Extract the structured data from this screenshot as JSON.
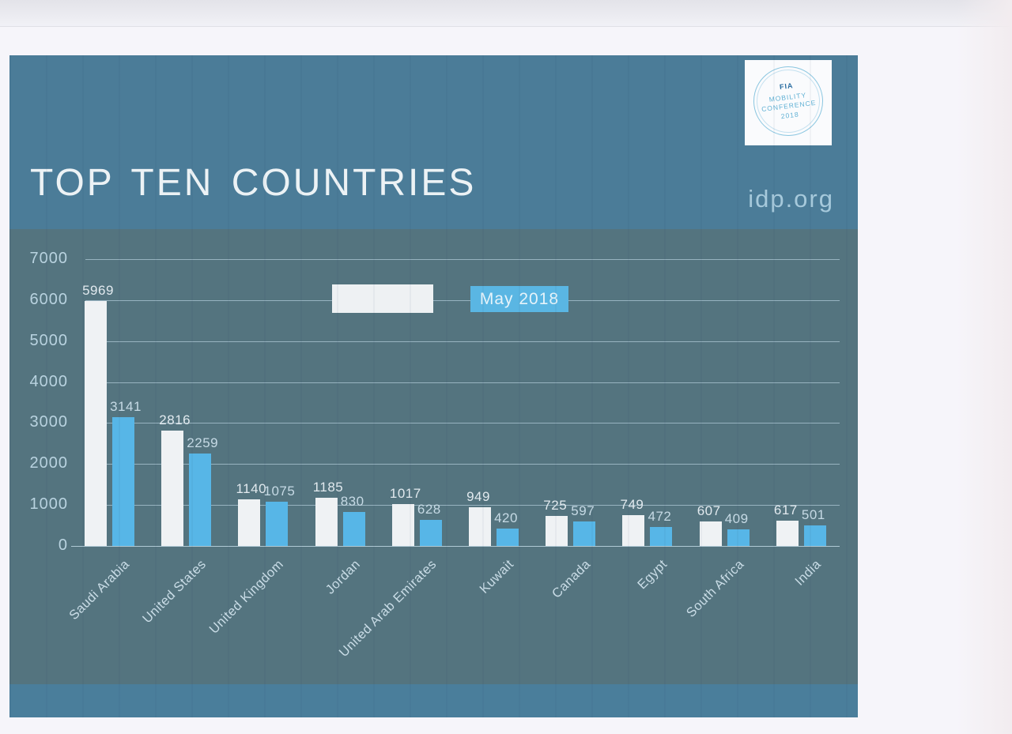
{
  "page": {
    "background": "#f6f5fa"
  },
  "slide": {
    "title": "TOP TEN COUNTRIES",
    "site": "idp.org",
    "colors": {
      "top_band": "#4b7c98",
      "chart_band": "#54747f",
      "bottom_strip": "#4a7e9b",
      "title_text": "#ecf2f5",
      "site_text": "#a6c9db"
    }
  },
  "logo": {
    "org": "FIA",
    "lines": [
      "MOBILITY",
      "CONFERENCE",
      "2018"
    ]
  },
  "legend": [
    {
      "label": "",
      "color": "#eef1f3"
    },
    {
      "label": "May 2018",
      "color": "#5ab6e3"
    }
  ],
  "chart_data": {
    "type": "bar",
    "title": "TOP TEN COUNTRIES",
    "categories": [
      "Saudi Arabia",
      "United States",
      "United Kingdom",
      "Jordan",
      "United Arab Emirates",
      "Kuwait",
      "Canada",
      "Egypt",
      "South Africa",
      "India"
    ],
    "series": [
      {
        "name": "",
        "color": "#eff2f4",
        "label_color": "#e2eaef",
        "values": [
          5969,
          2816,
          1140,
          1185,
          1017,
          949,
          725,
          749,
          607,
          617
        ]
      },
      {
        "name": "May 2018",
        "color": "#57b6e7",
        "label_color": "#c6dae5",
        "values": [
          3141,
          2259,
          1075,
          830,
          628,
          420,
          597,
          472,
          409,
          501
        ]
      }
    ],
    "xlabel": "",
    "ylabel": "",
    "ylim": [
      0,
      7000
    ],
    "yticks": [
      0,
      1000,
      2000,
      3000,
      4000,
      5000,
      6000,
      7000
    ],
    "grid": true,
    "legend_position": "top-center"
  }
}
